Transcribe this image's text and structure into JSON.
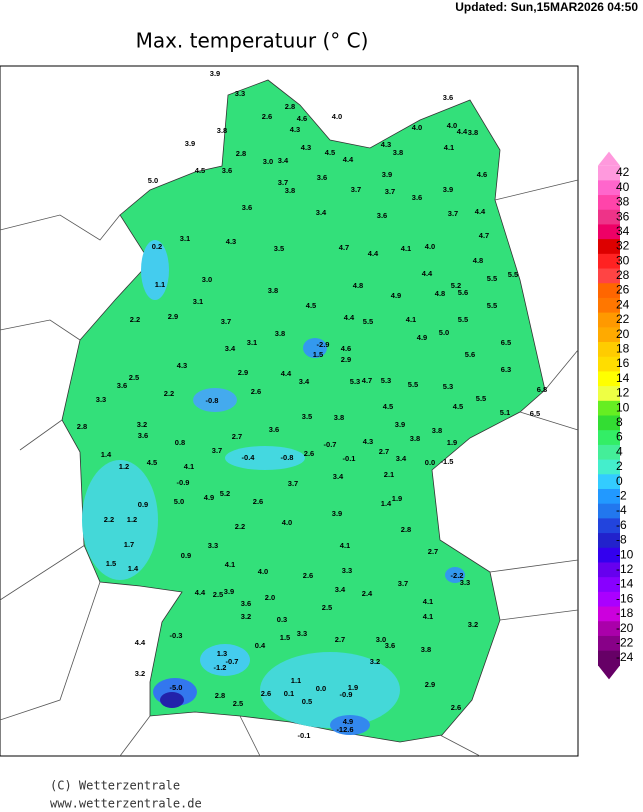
{
  "header": {
    "updated": "Updated:  Sun,15MAR2026  04:50",
    "title": "Max.  temperatuur  (° C)"
  },
  "legend": {
    "levels": [
      42,
      40,
      38,
      36,
      34,
      32,
      30,
      28,
      26,
      24,
      22,
      20,
      18,
      16,
      14,
      12,
      10,
      8,
      6,
      4,
      2,
      0,
      -2,
      -4,
      -6,
      -8,
      -10,
      -12,
      -14,
      -16,
      -18,
      -20,
      -22,
      -24
    ],
    "colors": [
      "#ff99dd",
      "#ff66cc",
      "#ff44aa",
      "#ee3388",
      "#ee0066",
      "#dd0000",
      "#ff2222",
      "#ff4444",
      "#ff6600",
      "#ff7700",
      "#ff9900",
      "#ffaa00",
      "#ffcc00",
      "#ffdd00",
      "#ffff00",
      "#eeff44",
      "#66ee22",
      "#33dd33",
      "#33ee66",
      "#44ee99",
      "#44eecc",
      "#33ccff",
      "#2299ff",
      "#2277ee",
      "#2244dd",
      "#2222cc",
      "#3300ee",
      "#6600ee",
      "#8800ff",
      "#aa00ff",
      "#cc00dd",
      "#aa00aa",
      "#880088",
      "#660066"
    ]
  },
  "stations": [
    "3.9",
    "3.3",
    "2.6",
    "2.8",
    "4.6",
    "4.3",
    "4.0",
    "3.8",
    "3.9",
    "2.8",
    "3.0",
    "3.4",
    "4.3",
    "4.5",
    "4.4",
    "4.3",
    "3.8",
    "4.0",
    "3.6",
    "4.0",
    "4.4",
    "3.8",
    "4.1",
    "4.6",
    "4.5",
    "3.6",
    "5.0",
    "3.7",
    "3.8",
    "3.6",
    "3.7",
    "3.9",
    "3.7",
    "3.6",
    "3.9",
    "3.7",
    "4.4",
    "3.6",
    "3.4",
    "3.6",
    "4.7",
    "4.3",
    "3.1",
    "0.2",
    "3.5",
    "4.7",
    "4.4",
    "4.1",
    "4.0",
    "4.8",
    "1.1",
    "3.0",
    "3.8",
    "4.8",
    "4.4",
    "5.5",
    "5.5",
    "5.2",
    "5.6",
    "4.8",
    "4.9",
    "3.1",
    "4.5",
    "5.5",
    "2.2",
    "2.9",
    "3.7",
    "4.4",
    "5.5",
    "4.1",
    "5.5",
    "5.0",
    "4.9",
    "3.8",
    "-2.9",
    "1.5",
    "4.6",
    "2.9",
    "3.4",
    "3.1",
    "6.5",
    "5.6",
    "4.3",
    "2.5",
    "3.6",
    "2.2",
    "3.3",
    "-0.8",
    "2.9",
    "2.6",
    "4.4",
    "3.4",
    "5.3",
    "4.7",
    "5.3",
    "5.5",
    "5.3",
    "6.3",
    "6.8",
    "5.5",
    "5.1",
    "6.5",
    "4.5",
    "4.5",
    "3.5",
    "3.8",
    "3.2",
    "3.6",
    "2.8",
    "0.8",
    "2.7",
    "3.6",
    "3.9",
    "3.8",
    "3.8",
    "1.9",
    "-0.7",
    "4.3",
    "2.7",
    "3.4",
    "1.4",
    "1.2",
    "4.5",
    "4.1",
    "3.7",
    "-0.4",
    "-0.8",
    "2.6",
    "-0.1",
    "0.0",
    "-1.5",
    "3.4",
    "2.1",
    "-0.9",
    "3.7",
    "5.2",
    "4.9",
    "5.0",
    "2.6",
    "1.4",
    "1.9",
    "0.9",
    "3.9",
    "2.2",
    "1.2",
    "4.0",
    "2.2",
    "2.8",
    "1.7",
    "3.3",
    "4.1",
    "0.9",
    "4.1",
    "2.7",
    "1.5",
    "1.4",
    "4.0",
    "3.3",
    "2.6",
    "-2.2",
    "3.3",
    "3.4",
    "2.4",
    "3.7",
    "4.4",
    "2.5",
    "3.9",
    "2.0",
    "4.1",
    "3.6",
    "2.5",
    "3.2",
    "0.3",
    "4.1",
    "3.2",
    "-0.3",
    "1.5",
    "3.3",
    "2.7",
    "3.0",
    "3.6",
    "4.4",
    "0.4",
    "3.8",
    "1.3",
    "-0.7",
    "-1.2",
    "3.2",
    "3.2",
    "-5.0",
    "1.1",
    "0.0",
    "1.9",
    "-0.9",
    "2.9",
    "2.6",
    "0.1",
    "2.8",
    "0.5",
    "2.5",
    "2.6",
    "4.9",
    "-12.6",
    "-0.1"
  ],
  "footer": {
    "copyright": "(C) Wetterzentrale",
    "url": "www.wetterzentrale.de"
  }
}
